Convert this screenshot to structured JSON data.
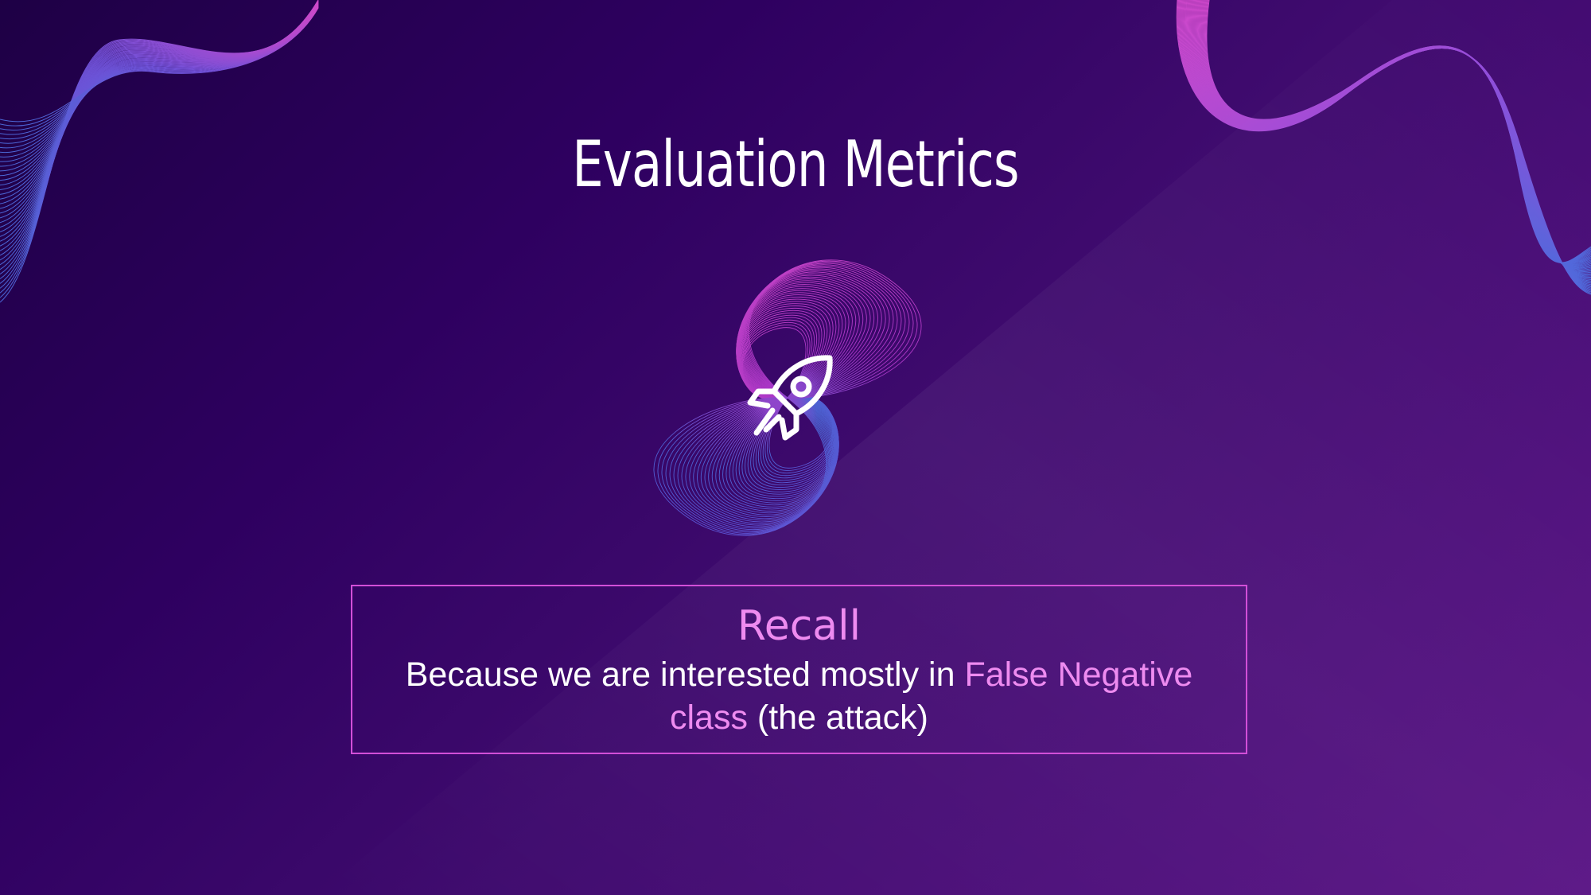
{
  "slide": {
    "title": "Evaluation Metrics",
    "center_icon": "rocket-icon",
    "box": {
      "heading": "Recall",
      "text_part1": "Because we are interested mostly in ",
      "text_highlight": "False Negative class",
      "text_part2": " (the attack)"
    }
  },
  "colors": {
    "background_dark": "#1e0045",
    "background_light": "#560f82",
    "accent_pink": "#ee8bf0",
    "box_border": "#d24fd8",
    "wave_blue": "#4f74e6",
    "text": "#ffffff"
  }
}
